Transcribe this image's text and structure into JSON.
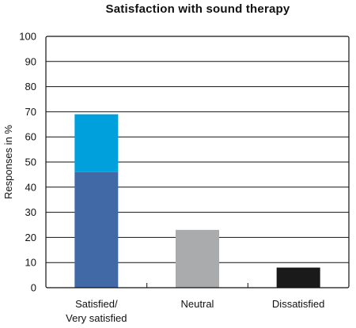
{
  "chart_data": {
    "type": "bar",
    "title": "Satisfaction with sound therapy",
    "xlabel": "",
    "ylabel": "Responses in %",
    "ylim": [
      0,
      100
    ],
    "yticks": [
      "0",
      "10",
      "20",
      "30",
      "40",
      "50",
      "60",
      "70",
      "80",
      "90",
      "100"
    ],
    "grid": true,
    "categories": [
      [
        "Satisfied/",
        "Very satisfied"
      ],
      [
        "Neutral"
      ],
      [
        "Dissatisfied"
      ]
    ],
    "bars": [
      {
        "category": "Satisfied/ Very satisfied",
        "segments": [
          {
            "value": 46,
            "color": "#4169a6"
          },
          {
            "value": 23,
            "color": "#00a0dc"
          }
        ],
        "total": 69
      },
      {
        "category": "Neutral",
        "segments": [
          {
            "value": 23,
            "color": "#aaabad"
          }
        ],
        "total": 23
      },
      {
        "category": "Dissatisfied",
        "segments": [
          {
            "value": 8,
            "color": "#1a1a1a"
          }
        ],
        "total": 8
      }
    ]
  }
}
